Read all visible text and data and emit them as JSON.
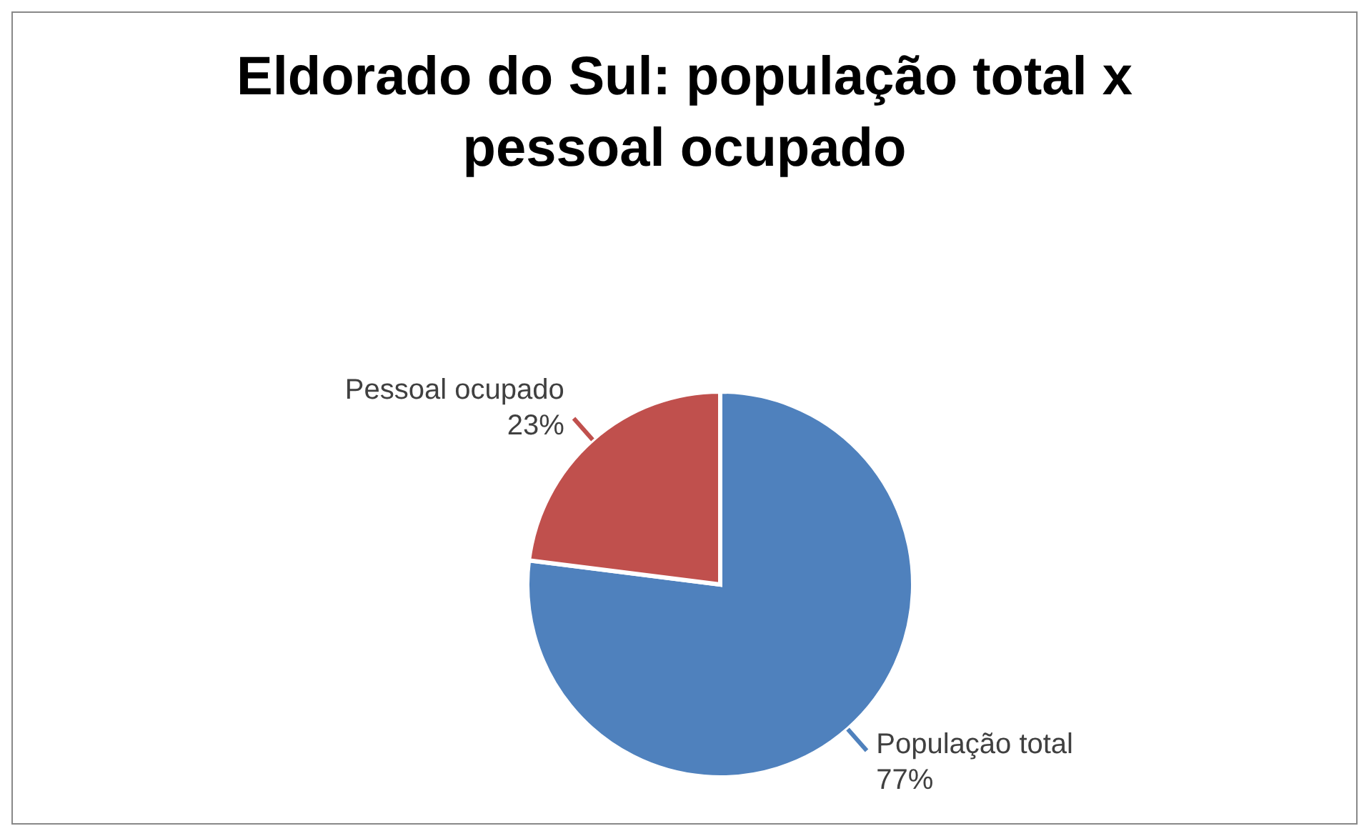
{
  "chart_data": {
    "type": "pie",
    "title": "Eldorado do Sul: população total x pessoal ocupado",
    "categories": [
      "População total",
      "Pessoal ocupado"
    ],
    "values": [
      77,
      23
    ],
    "colors": [
      "#4f81bd",
      "#c0504d"
    ],
    "value_labels": [
      "77%",
      "23%"
    ],
    "legend": false
  }
}
